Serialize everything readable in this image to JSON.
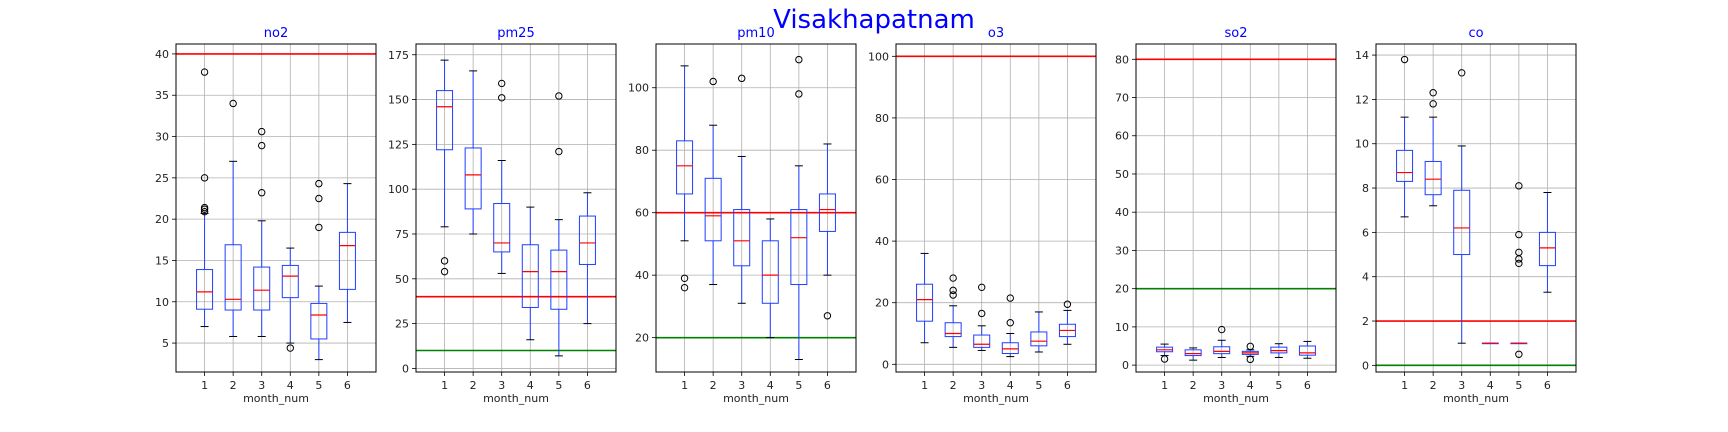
{
  "figure": {
    "suptitle": "Visakhapatnam"
  },
  "chart_data": [
    {
      "type": "box",
      "title": "no2",
      "xlabel": "month_num",
      "ylabel": "",
      "categories": [
        "1",
        "2",
        "3",
        "4",
        "5",
        "6"
      ],
      "ylim": [
        1.5,
        41.2
      ],
      "yticks": [
        5,
        10,
        15,
        20,
        25,
        30,
        35,
        40
      ],
      "grid": true,
      "reference_lines": [
        {
          "value": 40,
          "color": "#ff0000"
        }
      ],
      "boxes": [
        {
          "whislo": 7,
          "q1": 9.1,
          "med": 11.2,
          "q3": 13.9,
          "whishi": 20.7,
          "fliers": [
            20.9,
            21.2,
            21.4,
            25,
            37.8
          ]
        },
        {
          "whislo": 5.8,
          "q1": 9,
          "med": 10.3,
          "q3": 16.9,
          "whishi": 27,
          "fliers": [
            34
          ]
        },
        {
          "whislo": 5.8,
          "q1": 9,
          "med": 11.4,
          "q3": 14.2,
          "whishi": 19.8,
          "fliers": [
            23.2,
            28.9,
            30.6
          ]
        },
        {
          "whislo": 5,
          "q1": 10.5,
          "med": 13.1,
          "q3": 14.4,
          "whishi": 16.5,
          "fliers": [
            4.4
          ]
        },
        {
          "whislo": 3,
          "q1": 5.5,
          "med": 8.4,
          "q3": 9.8,
          "whishi": 11.9,
          "fliers": [
            19,
            22.5,
            24.3
          ]
        },
        {
          "whislo": 7.5,
          "q1": 11.5,
          "med": 16.8,
          "q3": 18.4,
          "whishi": 24.3,
          "fliers": []
        }
      ]
    },
    {
      "type": "box",
      "title": "pm25",
      "xlabel": "month_num",
      "ylabel": "",
      "categories": [
        "1",
        "2",
        "3",
        "4",
        "5",
        "6"
      ],
      "ylim": [
        -2,
        181
      ],
      "yticks": [
        0,
        25,
        50,
        75,
        100,
        125,
        150,
        175
      ],
      "grid": true,
      "reference_lines": [
        {
          "value": 40,
          "color": "#ff0000"
        },
        {
          "value": 10,
          "color": "#008000"
        }
      ],
      "boxes": [
        {
          "whislo": 79,
          "q1": 122,
          "med": 146,
          "q3": 155,
          "whishi": 172,
          "fliers": [
            54,
            60
          ]
        },
        {
          "whislo": 75,
          "q1": 89,
          "med": 108,
          "q3": 123,
          "whishi": 166,
          "fliers": []
        },
        {
          "whislo": 53,
          "q1": 65,
          "med": 70,
          "q3": 92,
          "whishi": 116,
          "fliers": [
            151,
            159
          ]
        },
        {
          "whislo": 16,
          "q1": 34,
          "med": 54,
          "q3": 69,
          "whishi": 90,
          "fliers": []
        },
        {
          "whislo": 7,
          "q1": 33,
          "med": 54,
          "q3": 66,
          "whishi": 83,
          "fliers": [
            121,
            152
          ]
        },
        {
          "whislo": 25,
          "q1": 58,
          "med": 70,
          "q3": 85,
          "whishi": 98,
          "fliers": []
        }
      ]
    },
    {
      "type": "box",
      "title": "pm10",
      "xlabel": "month_num",
      "ylabel": "",
      "categories": [
        "1",
        "2",
        "3",
        "4",
        "5",
        "6"
      ],
      "ylim": [
        9,
        114
      ],
      "yticks": [
        20,
        40,
        60,
        80,
        100
      ],
      "grid": true,
      "reference_lines": [
        {
          "value": 60,
          "color": "#ff0000"
        },
        {
          "value": 20,
          "color": "#008000"
        }
      ],
      "boxes": [
        {
          "whislo": 51,
          "q1": 66,
          "med": 75,
          "q3": 83,
          "whishi": 107,
          "fliers": [
            36,
            39
          ]
        },
        {
          "whislo": 37,
          "q1": 51,
          "med": 59,
          "q3": 71,
          "whishi": 88,
          "fliers": [
            102
          ]
        },
        {
          "whislo": 31,
          "q1": 43,
          "med": 51,
          "q3": 61,
          "whishi": 78,
          "fliers": [
            103
          ]
        },
        {
          "whislo": 20,
          "q1": 31,
          "med": 40,
          "q3": 51,
          "whishi": 58,
          "fliers": []
        },
        {
          "whislo": 13,
          "q1": 37,
          "med": 52,
          "q3": 61,
          "whishi": 75,
          "fliers": [
            98,
            109
          ]
        },
        {
          "whislo": 40,
          "q1": 54,
          "med": 61,
          "q3": 66,
          "whishi": 82,
          "fliers": [
            27
          ]
        }
      ]
    },
    {
      "type": "box",
      "title": "o3",
      "xlabel": "month_num",
      "ylabel": "",
      "categories": [
        "1",
        "2",
        "3",
        "4",
        "5",
        "6"
      ],
      "ylim": [
        -2.5,
        104
      ],
      "yticks": [
        0,
        20,
        40,
        60,
        80,
        100
      ],
      "grid": true,
      "reference_lines": [
        {
          "value": 100,
          "color": "#ff0000"
        }
      ],
      "boxes": [
        {
          "whislo": 7,
          "q1": 14,
          "med": 21,
          "q3": 26,
          "whishi": 36,
          "fliers": []
        },
        {
          "whislo": 5.5,
          "q1": 9,
          "med": 10,
          "q3": 13.5,
          "whishi": 19,
          "fliers": [
            22.5,
            24,
            28
          ]
        },
        {
          "whislo": 4.5,
          "q1": 5.5,
          "med": 6.5,
          "q3": 9.5,
          "whishi": 12.5,
          "fliers": [
            16.5,
            25
          ]
        },
        {
          "whislo": 2.5,
          "q1": 3.5,
          "med": 5,
          "q3": 7,
          "whishi": 10,
          "fliers": [
            13.5,
            21.5
          ]
        },
        {
          "whislo": 4,
          "q1": 6,
          "med": 7.5,
          "q3": 10.5,
          "whishi": 17,
          "fliers": []
        },
        {
          "whislo": 6.5,
          "q1": 9,
          "med": 11,
          "q3": 13,
          "whishi": 17.5,
          "fliers": [
            19.5
          ]
        }
      ]
    },
    {
      "type": "box",
      "title": "so2",
      "xlabel": "month_num",
      "ylabel": "",
      "categories": [
        "1",
        "2",
        "3",
        "4",
        "5",
        "6"
      ],
      "ylim": [
        -1.8,
        84
      ],
      "yticks": [
        0,
        10,
        20,
        30,
        40,
        50,
        60,
        70,
        80
      ],
      "grid": true,
      "reference_lines": [
        {
          "value": 80,
          "color": "#ff0000"
        },
        {
          "value": 20,
          "color": "#008000"
        }
      ],
      "boxes": [
        {
          "whislo": 2.5,
          "q1": 3.5,
          "med": 4,
          "q3": 4.7,
          "whishi": 5.5,
          "fliers": [
            1.6
          ]
        },
        {
          "whislo": 1.3,
          "q1": 2.5,
          "med": 3,
          "q3": 4,
          "whishi": 4.5,
          "fliers": []
        },
        {
          "whislo": 2,
          "q1": 3,
          "med": 3.6,
          "q3": 4.8,
          "whishi": 6.5,
          "fliers": [
            9.3
          ]
        },
        {
          "whislo": 2.3,
          "q1": 2.8,
          "med": 3.2,
          "q3": 3.6,
          "whishi": 4,
          "fliers": [
            1.5,
            4.9
          ]
        },
        {
          "whislo": 2,
          "q1": 3.2,
          "med": 3.8,
          "q3": 4.7,
          "whishi": 5.6,
          "fliers": []
        },
        {
          "whislo": 1.8,
          "q1": 2.6,
          "med": 3.2,
          "q3": 5,
          "whishi": 6.2,
          "fliers": []
        }
      ]
    },
    {
      "type": "box",
      "title": "co",
      "xlabel": "month_num",
      "ylabel": "",
      "categories": [
        "1",
        "2",
        "3",
        "4",
        "5",
        "6"
      ],
      "ylim": [
        -0.3,
        14.5
      ],
      "yticks": [
        0,
        2,
        4,
        6,
        8,
        10,
        12,
        14
      ],
      "grid": true,
      "reference_lines": [
        {
          "value": 2,
          "color": "#ff0000"
        },
        {
          "value": 0,
          "color": "#008000"
        }
      ],
      "boxes": [
        {
          "whislo": 6.7,
          "q1": 8.3,
          "med": 8.7,
          "q3": 9.7,
          "whishi": 11.2,
          "fliers": [
            13.8
          ]
        },
        {
          "whislo": 7.2,
          "q1": 7.7,
          "med": 8.4,
          "q3": 9.2,
          "whishi": 11.2,
          "fliers": [
            11.8,
            12.3
          ]
        },
        {
          "whislo": 1,
          "q1": 5,
          "med": 6.2,
          "q3": 7.9,
          "whishi": 9.9,
          "fliers": [
            13.2
          ]
        },
        {
          "whislo": 1,
          "q1": 1,
          "med": 1,
          "q3": 1,
          "whishi": 1,
          "fliers": []
        },
        {
          "whislo": 1,
          "q1": 1,
          "med": 1,
          "q3": 1,
          "whishi": 1,
          "fliers": [
            0.5,
            4.6,
            4.8,
            5.1,
            5.9,
            8.1
          ]
        },
        {
          "whislo": 3.3,
          "q1": 4.5,
          "med": 5.3,
          "q3": 6,
          "whishi": 7.8,
          "fliers": []
        }
      ]
    }
  ]
}
